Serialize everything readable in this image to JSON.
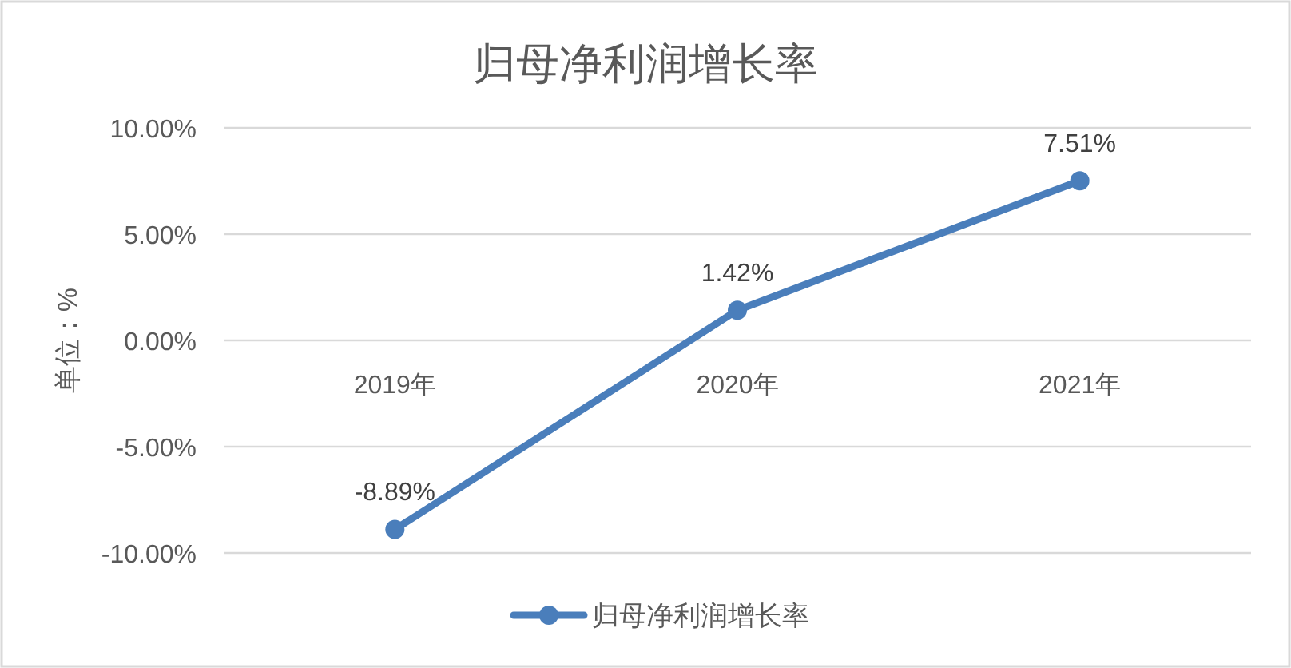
{
  "chart_data": {
    "type": "line",
    "title": "归母净利润增长率",
    "ylabel": "单位：%",
    "categories": [
      "2019年",
      "2020年",
      "2021年"
    ],
    "series": [
      {
        "name": "归母净利润增长率",
        "color": "#4a7ebb",
        "values": [
          -8.89,
          1.42,
          7.51
        ],
        "value_labels": [
          "-8.89%",
          "1.42%",
          "7.51%"
        ]
      }
    ],
    "ylim": [
      -10,
      10
    ],
    "yticks": [
      {
        "value": -10,
        "label": "-10.00%"
      },
      {
        "value": -5,
        "label": "-5.00%"
      },
      {
        "value": 0,
        "label": "0.00%"
      },
      {
        "value": 5,
        "label": "5.00%"
      },
      {
        "value": 10,
        "label": "10.00%"
      }
    ],
    "grid": "y",
    "legend": "bottom",
    "marker": "circle",
    "line_style": "solid"
  }
}
